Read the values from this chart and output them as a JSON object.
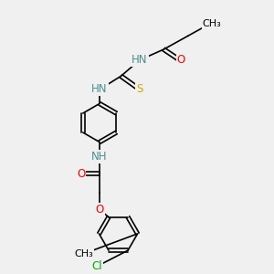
{
  "bg_color": "#f0f0f0",
  "atom_colors": {
    "N": "#4a9090",
    "N2": "#0000cc",
    "O": "#ff0000",
    "S": "#ccaa00",
    "Cl": "#00aa00",
    "C": "#000000"
  },
  "bond_color": "#000000",
  "bond_width": 1.2,
  "font_size": 8.5,
  "figsize": [
    3.0,
    3.0
  ],
  "dpi": 100,
  "xlim": [
    0,
    10
  ],
  "ylim": [
    0,
    10
  ]
}
